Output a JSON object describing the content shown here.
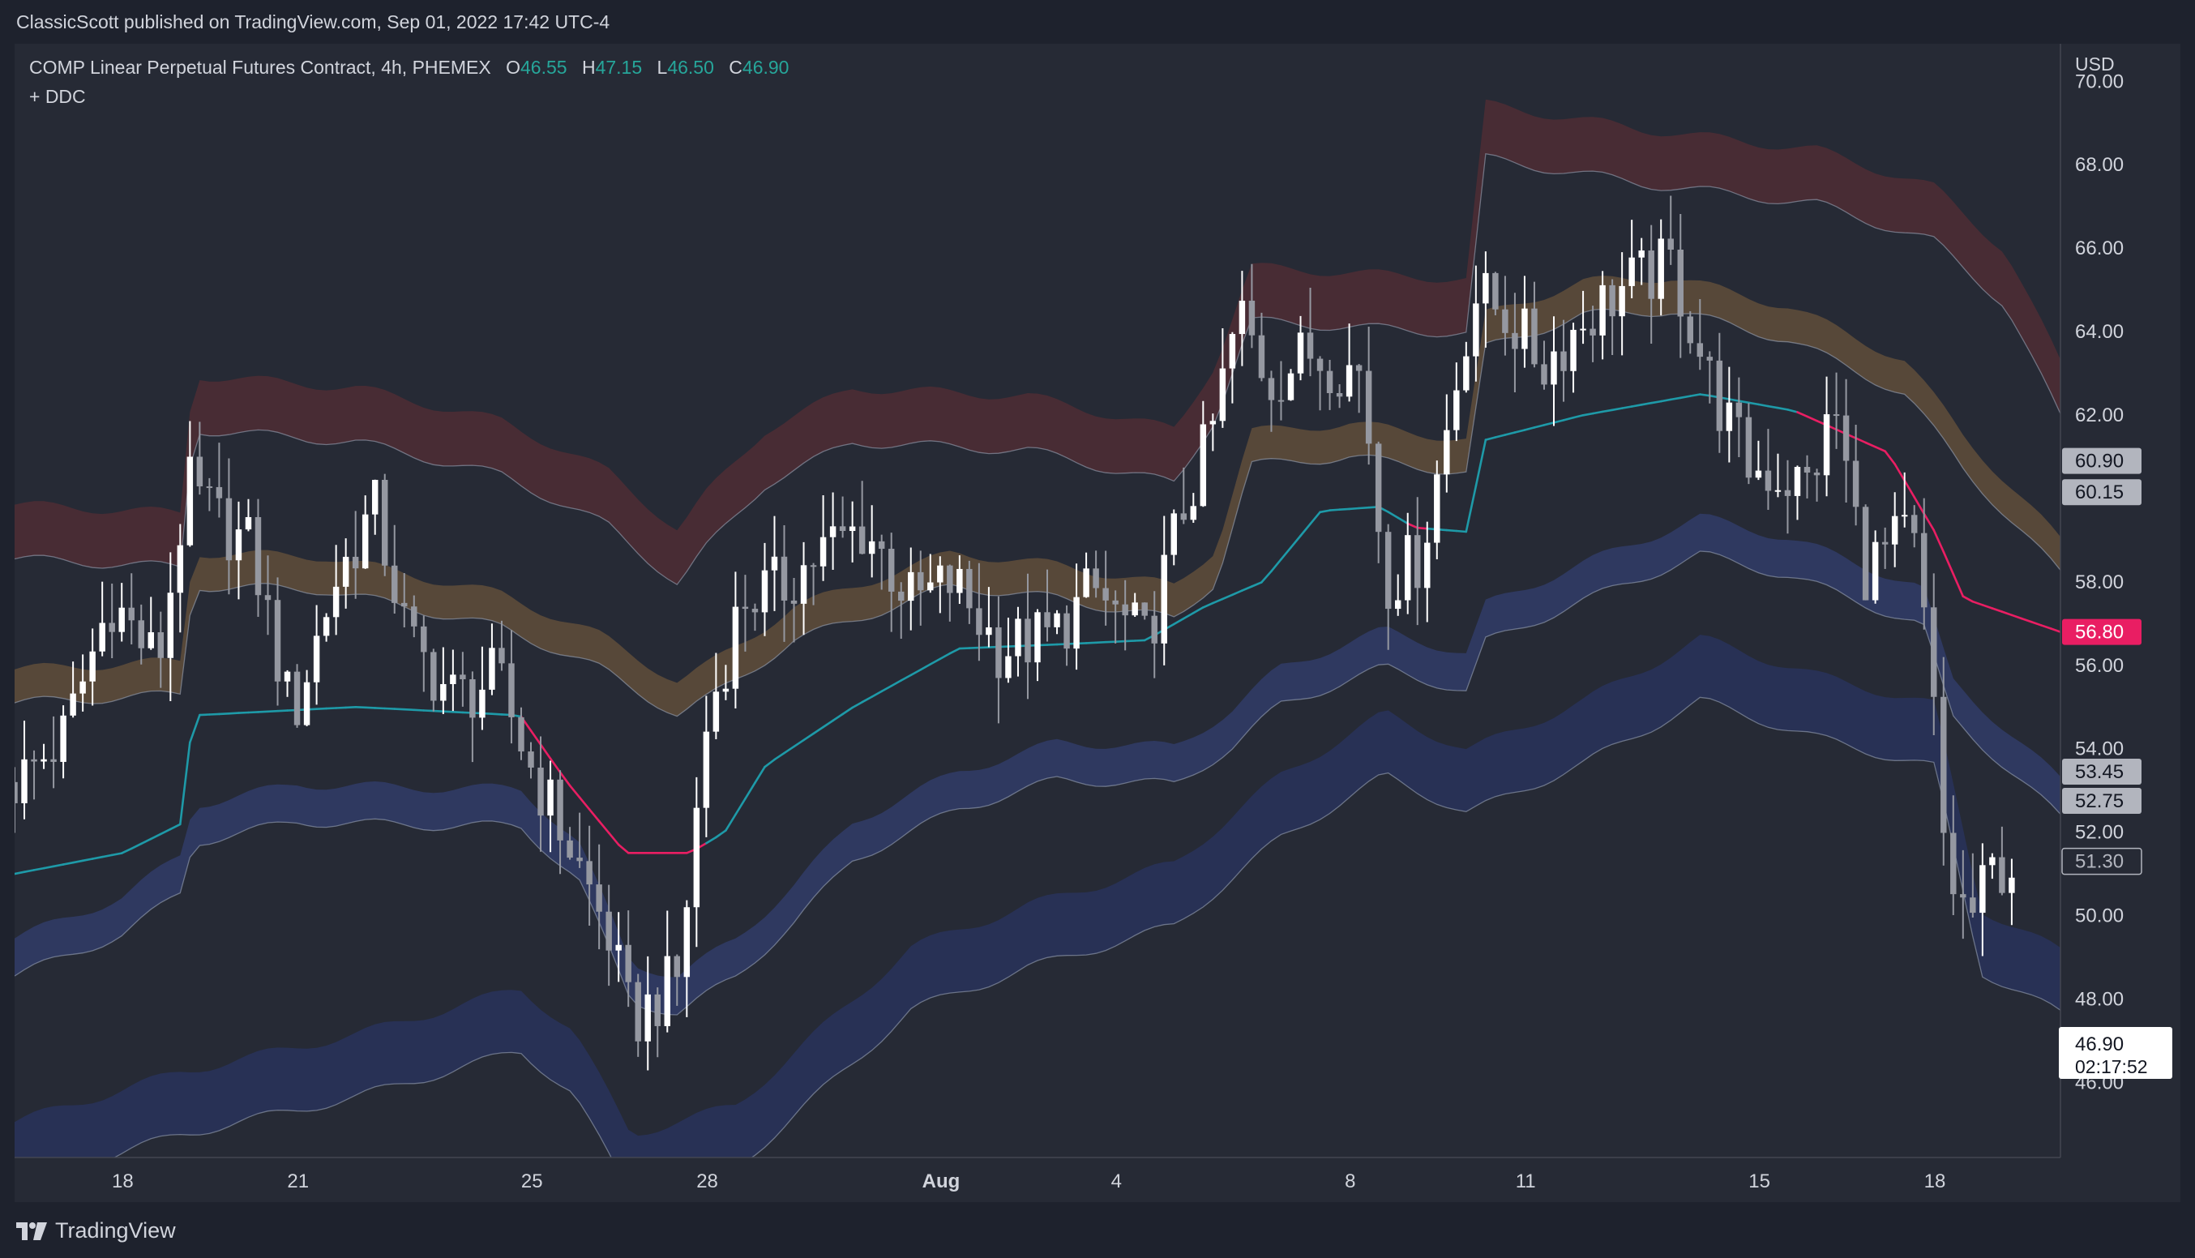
{
  "attribution": "ClassicScott published on TradingView.com, Sep 01, 2022 17:42 UTC-4",
  "legend": {
    "symbol": "COMP Linear Perpetual Futures Contract, 4h, PHEMEX",
    "open_label": "O",
    "open": "46.55",
    "high_label": "H",
    "high": "47.15",
    "low_label": "L",
    "low": "46.50",
    "close_label": "C",
    "close": "46.90",
    "indicator": "+ DDC"
  },
  "currency": "USD",
  "brand": "TradingView",
  "colors": {
    "background": "#1e222d",
    "panel": "#262a35",
    "text": "#d1d4dc",
    "candle_up": "#ffffff",
    "candle_down": "#9598a1",
    "upper_band": "#4a2c35",
    "mid_upper_band": "#5a4a3a",
    "lower_band": "#2f3a63",
    "lowest_band": "#283257",
    "midline_bull": "#1e9aa8",
    "midline_bear": "#e91e63",
    "legend_value": "#26a69a"
  },
  "chart_data": {
    "type": "candlestick",
    "timeframe": "4h",
    "ylim": [
      44.2,
      70.9
    ],
    "yticks": [
      46,
      48,
      50,
      52,
      54,
      56,
      58,
      60,
      62,
      64,
      66,
      68,
      70
    ],
    "ytick_labels": [
      "46.00",
      "48.00",
      "50.00",
      "52.00",
      "54.00",
      "56.00",
      "58.00",
      "60.00",
      "62.00",
      "64.00",
      "66.00",
      "68.00",
      "70.00"
    ],
    "xticks": [
      {
        "label": "18",
        "day": 0
      },
      {
        "label": "21",
        "day": 3
      },
      {
        "label": "25",
        "day": 7
      },
      {
        "label": "28",
        "day": 10
      },
      {
        "label": "Aug",
        "day": 14
      },
      {
        "label": "4",
        "day": 17
      },
      {
        "label": "8",
        "day": 21
      },
      {
        "label": "11",
        "day": 24
      },
      {
        "label": "15",
        "day": 28
      },
      {
        "label": "18",
        "day": 31
      }
    ],
    "xlim_days": [
      -1.85,
      33.15
    ],
    "price_badges": [
      {
        "value": "60.90",
        "price": 60.9,
        "style": "gray"
      },
      {
        "value": "60.15",
        "price": 60.15,
        "style": "gray"
      },
      {
        "value": "56.80",
        "price": 56.8,
        "style": "pink"
      },
      {
        "value": "53.45",
        "price": 53.45,
        "style": "gray"
      },
      {
        "value": "52.75",
        "price": 52.75,
        "style": "gray"
      },
      {
        "value": "51.30",
        "price": 51.3,
        "style": "outline"
      }
    ],
    "last_price": {
      "value": "46.90",
      "price": 46.9,
      "countdown": "02:17:52"
    },
    "candle_anchors": [
      {
        "day": -1.8,
        "price": 53.2
      },
      {
        "day": -1.0,
        "price": 54.3
      },
      {
        "day": -0.2,
        "price": 57.6
      },
      {
        "day": 0.6,
        "price": 56.0
      },
      {
        "day": 1.1,
        "price": 60.3
      },
      {
        "day": 1.6,
        "price": 59.5
      },
      {
        "day": 2.2,
        "price": 58.8
      },
      {
        "day": 2.9,
        "price": 54.7
      },
      {
        "day": 3.6,
        "price": 57.9
      },
      {
        "day": 4.3,
        "price": 59.8
      },
      {
        "day": 4.9,
        "price": 56.5
      },
      {
        "day": 5.7,
        "price": 55.2
      },
      {
        "day": 6.4,
        "price": 55.7
      },
      {
        "day": 7.0,
        "price": 53.5
      },
      {
        "day": 7.6,
        "price": 51.8
      },
      {
        "day": 8.3,
        "price": 49.6
      },
      {
        "day": 8.7,
        "price": 47.4
      },
      {
        "day": 9.5,
        "price": 48.5
      },
      {
        "day": 10.0,
        "price": 54.7
      },
      {
        "day": 10.6,
        "price": 57.6
      },
      {
        "day": 11.3,
        "price": 57.9
      },
      {
        "day": 12.0,
        "price": 58.8
      },
      {
        "day": 12.7,
        "price": 59.3
      },
      {
        "day": 13.5,
        "price": 57.5
      },
      {
        "day": 14.2,
        "price": 58.0
      },
      {
        "day": 15.0,
        "price": 56.4
      },
      {
        "day": 15.9,
        "price": 56.7
      },
      {
        "day": 16.6,
        "price": 57.8
      },
      {
        "day": 17.5,
        "price": 56.5
      },
      {
        "day": 18.1,
        "price": 59.6
      },
      {
        "day": 18.6,
        "price": 61.4
      },
      {
        "day": 19.1,
        "price": 64.5
      },
      {
        "day": 19.6,
        "price": 62.8
      },
      {
        "day": 20.3,
        "price": 63.5
      },
      {
        "day": 21.2,
        "price": 63.0
      },
      {
        "day": 21.6,
        "price": 58.0
      },
      {
        "day": 22.2,
        "price": 58.6
      },
      {
        "day": 22.7,
        "price": 62.0
      },
      {
        "day": 23.1,
        "price": 64.9
      },
      {
        "day": 23.6,
        "price": 64.5
      },
      {
        "day": 24.3,
        "price": 63.2
      },
      {
        "day": 25.0,
        "price": 64.3
      },
      {
        "day": 25.6,
        "price": 65.0
      },
      {
        "day": 26.5,
        "price": 65.6
      },
      {
        "day": 27.2,
        "price": 62.6
      },
      {
        "day": 27.8,
        "price": 60.8
      },
      {
        "day": 28.8,
        "price": 60.3
      },
      {
        "day": 29.3,
        "price": 62.1
      },
      {
        "day": 29.8,
        "price": 58.3
      },
      {
        "day": 30.6,
        "price": 59.2
      },
      {
        "day": 30.9,
        "price": 56.2
      },
      {
        "day": 31.2,
        "price": 51.0
      },
      {
        "day": 31.6,
        "price": 49.9
      },
      {
        "day": 32.0,
        "price": 51.1
      },
      {
        "day": 32.4,
        "price": 51.3
      }
    ],
    "bands": {
      "upper": [
        {
          "day": -1.85,
          "price": 59.2
        },
        {
          "day": 1.0,
          "price": 59.0
        },
        {
          "day": 1.2,
          "price": 62.3
        },
        {
          "day": 4.0,
          "price": 62.0
        },
        {
          "day": 6.5,
          "price": 61.2
        },
        {
          "day": 8.3,
          "price": 60.0
        },
        {
          "day": 9.5,
          "price": 58.6
        },
        {
          "day": 10.0,
          "price": 59.5
        },
        {
          "day": 11.0,
          "price": 61.0
        },
        {
          "day": 12.5,
          "price": 62.0
        },
        {
          "day": 15.5,
          "price": 61.8
        },
        {
          "day": 18.0,
          "price": 61.0
        },
        {
          "day": 18.7,
          "price": 62.6
        },
        {
          "day": 19.3,
          "price": 64.9
        },
        {
          "day": 23.0,
          "price": 64.6
        },
        {
          "day": 23.3,
          "price": 68.8
        },
        {
          "day": 26.0,
          "price": 68.2
        },
        {
          "day": 29.0,
          "price": 67.7
        },
        {
          "day": 31.0,
          "price": 66.8
        },
        {
          "day": 32.2,
          "price": 65.3
        },
        {
          "day": 33.15,
          "price": 62.6
        }
      ],
      "upper_mid": [
        {
          "day": -1.85,
          "price": 55.5
        },
        {
          "day": 1.0,
          "price": 55.7
        },
        {
          "day": 1.2,
          "price": 58.3
        },
        {
          "day": 3.5,
          "price": 58.2
        },
        {
          "day": 6.5,
          "price": 57.3
        },
        {
          "day": 8.2,
          "price": 56.3
        },
        {
          "day": 9.5,
          "price": 55.2
        },
        {
          "day": 10.0,
          "price": 55.6
        },
        {
          "day": 11.5,
          "price": 57.0
        },
        {
          "day": 14.2,
          "price": 58.3
        },
        {
          "day": 16.0,
          "price": 58.0
        },
        {
          "day": 18.0,
          "price": 57.5
        },
        {
          "day": 18.7,
          "price": 58.4
        },
        {
          "day": 19.3,
          "price": 61.2
        },
        {
          "day": 21.0,
          "price": 61.4
        },
        {
          "day": 23.0,
          "price": 61.0
        },
        {
          "day": 23.3,
          "price": 64.0
        },
        {
          "day": 25.0,
          "price": 64.8
        },
        {
          "day": 26.5,
          "price": 64.9
        },
        {
          "day": 28.5,
          "price": 64.2
        },
        {
          "day": 30.5,
          "price": 62.9
        },
        {
          "day": 31.5,
          "price": 61.1
        },
        {
          "day": 33.15,
          "price": 58.6
        }
      ],
      "lower": [
        {
          "day": -1.85,
          "price": 49.0
        },
        {
          "day": 0.0,
          "price": 50.0
        },
        {
          "day": 1.0,
          "price": 51.0
        },
        {
          "day": 1.2,
          "price": 52.2
        },
        {
          "day": 3.0,
          "price": 52.7
        },
        {
          "day": 5.5,
          "price": 52.6
        },
        {
          "day": 6.8,
          "price": 52.6
        },
        {
          "day": 7.8,
          "price": 51.3
        },
        {
          "day": 8.7,
          "price": 48.4
        },
        {
          "day": 9.5,
          "price": 48.1
        },
        {
          "day": 10.5,
          "price": 49.0
        },
        {
          "day": 11.5,
          "price": 50.3
        },
        {
          "day": 12.5,
          "price": 51.8
        },
        {
          "day": 14.3,
          "price": 53.0
        },
        {
          "day": 16.0,
          "price": 53.7
        },
        {
          "day": 18.0,
          "price": 53.6
        },
        {
          "day": 19.0,
          "price": 54.5
        },
        {
          "day": 19.8,
          "price": 55.5
        },
        {
          "day": 21.6,
          "price": 56.4
        },
        {
          "day": 23.0,
          "price": 55.8
        },
        {
          "day": 23.3,
          "price": 57.0
        },
        {
          "day": 25.0,
          "price": 58.0
        },
        {
          "day": 27.0,
          "price": 59.1
        },
        {
          "day": 28.5,
          "price": 58.6
        },
        {
          "day": 30.8,
          "price": 57.4
        },
        {
          "day": 31.3,
          "price": 55.2
        },
        {
          "day": 33.15,
          "price": 52.8
        }
      ],
      "lowest": [
        {
          "day": -1.85,
          "price": 44.3
        },
        {
          "day": 1.0,
          "price": 45.5
        },
        {
          "day": 4.0,
          "price": 46.4
        },
        {
          "day": 6.8,
          "price": 47.5
        },
        {
          "day": 7.7,
          "price": 46.5
        },
        {
          "day": 8.7,
          "price": 44.0
        },
        {
          "day": 10.5,
          "price": 44.7
        },
        {
          "day": 12.0,
          "price": 46.6
        },
        {
          "day": 13.5,
          "price": 48.5
        },
        {
          "day": 15.5,
          "price": 49.5
        },
        {
          "day": 18.0,
          "price": 50.5
        },
        {
          "day": 19.8,
          "price": 52.6
        },
        {
          "day": 21.6,
          "price": 54.1
        },
        {
          "day": 23.0,
          "price": 53.2
        },
        {
          "day": 25.0,
          "price": 54.4
        },
        {
          "day": 27.0,
          "price": 55.9
        },
        {
          "day": 29.0,
          "price": 55.0
        },
        {
          "day": 31.0,
          "price": 54.3
        },
        {
          "day": 31.8,
          "price": 49.4
        },
        {
          "day": 33.15,
          "price": 48.4
        }
      ],
      "midline": [
        {
          "day": -1.85,
          "price": 51.0
        },
        {
          "day": 0.0,
          "price": 51.5
        },
        {
          "day": 1.0,
          "price": 52.2
        },
        {
          "day": 1.2,
          "price": 54.8
        },
        {
          "day": 4.0,
          "price": 55.0
        },
        {
          "day": 6.8,
          "price": 54.8
        },
        {
          "day": 7.6,
          "price": 53.2
        },
        {
          "day": 8.6,
          "price": 51.5
        },
        {
          "day": 9.7,
          "price": 51.5
        },
        {
          "day": 10.3,
          "price": 52.0
        },
        {
          "day": 11.0,
          "price": 53.6
        },
        {
          "day": 12.5,
          "price": 55.0
        },
        {
          "day": 14.3,
          "price": 56.4
        },
        {
          "day": 16.0,
          "price": 56.5
        },
        {
          "day": 17.5,
          "price": 56.6
        },
        {
          "day": 18.5,
          "price": 57.4
        },
        {
          "day": 19.5,
          "price": 58.0
        },
        {
          "day": 20.5,
          "price": 59.7
        },
        {
          "day": 21.5,
          "price": 59.8
        },
        {
          "day": 22.1,
          "price": 59.3
        },
        {
          "day": 23.0,
          "price": 59.2
        },
        {
          "day": 23.3,
          "price": 61.4
        },
        {
          "day": 25.0,
          "price": 62.0
        },
        {
          "day": 27.0,
          "price": 62.5
        },
        {
          "day": 28.6,
          "price": 62.1
        },
        {
          "day": 30.2,
          "price": 61.1
        },
        {
          "day": 31.0,
          "price": 59.2
        },
        {
          "day": 31.5,
          "price": 57.6
        },
        {
          "day": 33.15,
          "price": 56.8
        }
      ],
      "midline_bear_ranges": [
        [
          6.8,
          9.9
        ],
        [
          22.0,
          22.3
        ],
        [
          28.6,
          33.15
        ]
      ]
    }
  }
}
